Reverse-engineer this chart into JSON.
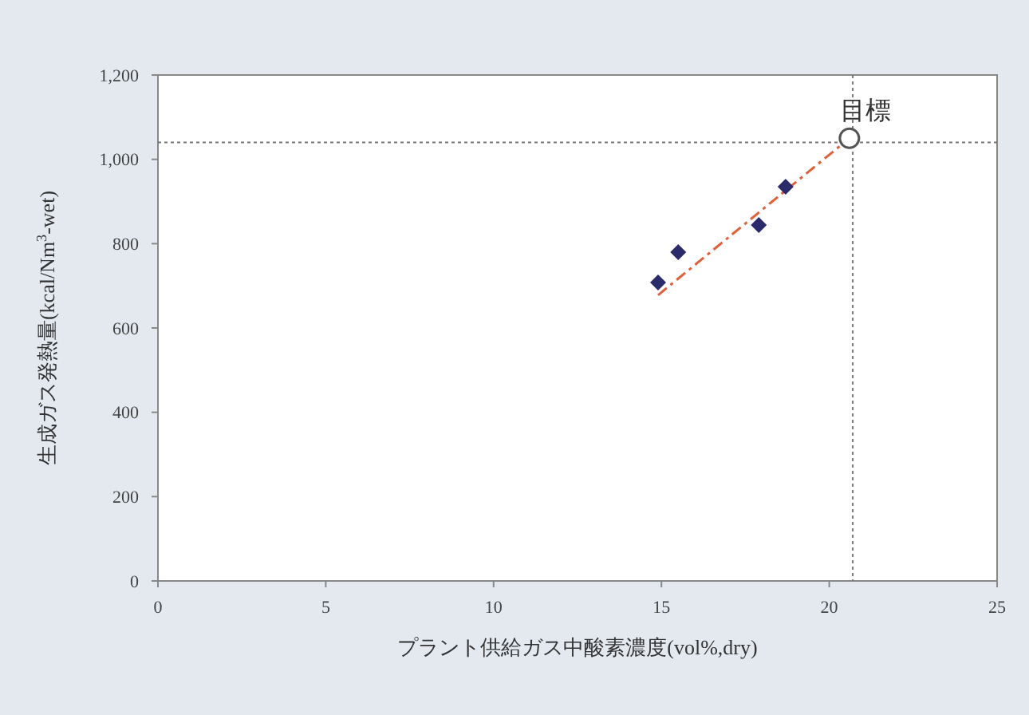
{
  "chart_data": {
    "type": "scatter",
    "xlabel": "プラント供給ガス中酸素濃度(vol%,dry)",
    "ylabel": "生成ガス発熱量(kcal/Nm$^{3}$-wet)",
    "xlim": [
      0,
      25
    ],
    "xticks": [
      0,
      5,
      10,
      15,
      20,
      25
    ],
    "ylim": [
      0,
      1200
    ],
    "yticks": [
      0,
      200,
      400,
      600,
      800,
      {
        "value": 1000,
        "label": "1,000"
      },
      {
        "value": 1200,
        "label": "1,200"
      }
    ],
    "grid": false,
    "series": [
      {
        "type": "line",
        "color": "#e0603a",
        "line_style": "dashed",
        "marker": "none",
        "x": [
          14.9,
          20.6
        ],
        "values": [
          678,
          1050
        ]
      },
      {
        "color": "#2b2a6b",
        "marker": "diamond",
        "x": [
          14.9,
          15.5,
          17.9,
          18.7
        ],
        "values": [
          708,
          780,
          844,
          935
        ]
      },
      {
        "color": "#555555",
        "marker": "circle",
        "x": [
          20.6
        ],
        "values": [
          1050
        ]
      }
    ],
    "ref_lines": [
      {
        "axis": "y",
        "value": 1040,
        "color": "#777777",
        "line_style": "dotted"
      },
      {
        "axis": "x",
        "value": 20.7,
        "color": "#777777",
        "line_style": "dotted"
      }
    ],
    "annotations": [
      {
        "text": "目標",
        "x": 20.6,
        "y": 1050
      }
    ]
  }
}
